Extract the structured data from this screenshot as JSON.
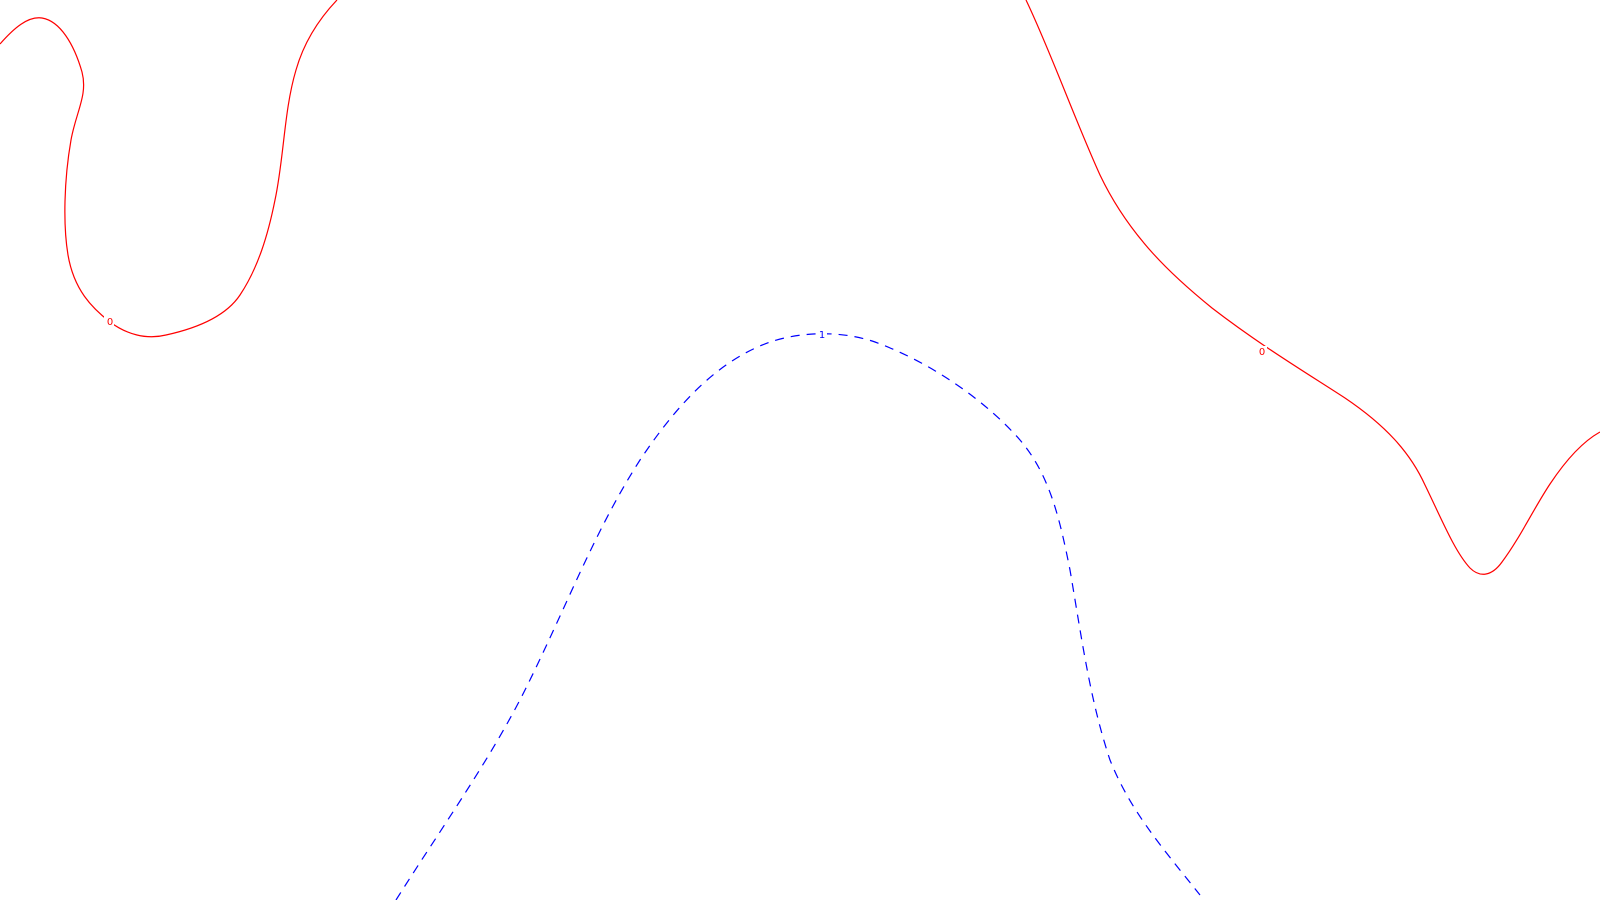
{
  "contours": [
    {
      "id": "contour-left-0",
      "level_label": "0",
      "color": "#ff0000",
      "line_style": "solid"
    },
    {
      "id": "contour-right-0",
      "level_label": "0",
      "color": "#ff0000",
      "line_style": "solid"
    },
    {
      "id": "contour-center-1",
      "level_label": "1",
      "color": "#0000ff",
      "line_style": "dashed"
    }
  ]
}
